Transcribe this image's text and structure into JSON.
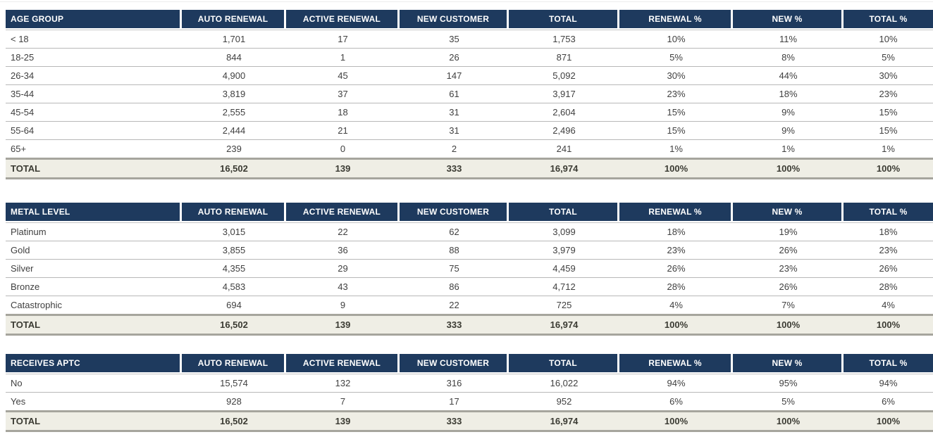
{
  "columns": [
    "AUTO RENEWAL",
    "ACTIVE RENEWAL",
    "NEW CUSTOMER",
    "TOTAL",
    "RENEWAL %",
    "NEW %",
    "TOTAL %"
  ],
  "colors": {
    "header_bg": "#1e3a5e",
    "header_text": "#ffffff",
    "total_row_bg": "#efeee5",
    "row_line": "#b8b8b8",
    "total_row_border": "#a6a59d",
    "body_text": "#404040"
  },
  "tables": [
    {
      "id": "age-group",
      "category_header": "AGE GROUP",
      "rows": [
        {
          "label": "< 18",
          "values": [
            "1,701",
            "17",
            "35",
            "1,753",
            "10%",
            "11%",
            "10%"
          ]
        },
        {
          "label": "18-25",
          "values": [
            "844",
            "1",
            "26",
            "871",
            "5%",
            "8%",
            "5%"
          ]
        },
        {
          "label": "26-34",
          "values": [
            "4,900",
            "45",
            "147",
            "5,092",
            "30%",
            "44%",
            "30%"
          ]
        },
        {
          "label": "35-44",
          "values": [
            "3,819",
            "37",
            "61",
            "3,917",
            "23%",
            "18%",
            "23%"
          ]
        },
        {
          "label": "45-54",
          "values": [
            "2,555",
            "18",
            "31",
            "2,604",
            "15%",
            "9%",
            "15%"
          ]
        },
        {
          "label": "55-64",
          "values": [
            "2,444",
            "21",
            "31",
            "2,496",
            "15%",
            "9%",
            "15%"
          ]
        },
        {
          "label": "65+",
          "values": [
            "239",
            "0",
            "2",
            "241",
            "1%",
            "1%",
            "1%"
          ]
        }
      ],
      "total": {
        "label": "TOTAL",
        "values": [
          "16,502",
          "139",
          "333",
          "16,974",
          "100%",
          "100%",
          "100%"
        ]
      }
    },
    {
      "id": "metal-level",
      "category_header": "METAL LEVEL",
      "rows": [
        {
          "label": "Platinum",
          "values": [
            "3,015",
            "22",
            "62",
            "3,099",
            "18%",
            "19%",
            "18%"
          ]
        },
        {
          "label": "Gold",
          "values": [
            "3,855",
            "36",
            "88",
            "3,979",
            "23%",
            "26%",
            "23%"
          ]
        },
        {
          "label": "Silver",
          "values": [
            "4,355",
            "29",
            "75",
            "4,459",
            "26%",
            "23%",
            "26%"
          ]
        },
        {
          "label": "Bronze",
          "values": [
            "4,583",
            "43",
            "86",
            "4,712",
            "28%",
            "26%",
            "28%"
          ]
        },
        {
          "label": "Catastrophic",
          "values": [
            "694",
            "9",
            "22",
            "725",
            "4%",
            "7%",
            "4%"
          ]
        }
      ],
      "total": {
        "label": "TOTAL",
        "values": [
          "16,502",
          "139",
          "333",
          "16,974",
          "100%",
          "100%",
          "100%"
        ]
      }
    },
    {
      "id": "receives-aptc",
      "category_header": "RECEIVES APTC",
      "rows": [
        {
          "label": "No",
          "values": [
            "15,574",
            "132",
            "316",
            "16,022",
            "94%",
            "95%",
            "94%"
          ]
        },
        {
          "label": "Yes",
          "values": [
            "928",
            "7",
            "17",
            "952",
            "6%",
            "5%",
            "6%"
          ]
        }
      ],
      "total": {
        "label": "TOTAL",
        "values": [
          "16,502",
          "139",
          "333",
          "16,974",
          "100%",
          "100%",
          "100%"
        ]
      }
    }
  ]
}
